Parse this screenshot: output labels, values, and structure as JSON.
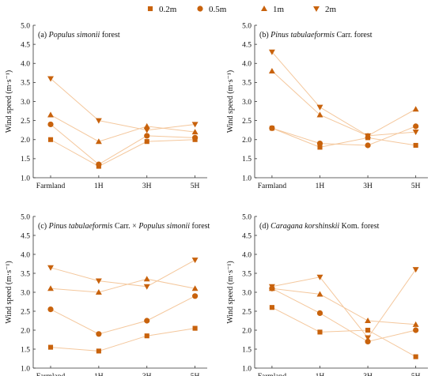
{
  "colors": {
    "marker": "#c8620c",
    "line": "#f4c79c",
    "axis": "#333333"
  },
  "legend": [
    {
      "label": "0.2m",
      "marker": "square"
    },
    {
      "label": "0.5m",
      "marker": "circle"
    },
    {
      "label": "1m",
      "marker": "triangle-up"
    },
    {
      "label": "2m",
      "marker": "triangle-down"
    }
  ],
  "chart_data": [
    {
      "type": "line",
      "title_prefix": "(a) ",
      "title_italic": "Populus simonii",
      "title_suffix": " forest",
      "title_italic2": "",
      "title_suffix2": "",
      "ylabel": "Wind speed (m·s⁻¹)",
      "ylim": [
        1.0,
        5.0
      ],
      "yticks": [
        "1.0",
        "1.5",
        "2.0",
        "2.5",
        "3.0",
        "3.5",
        "4.0",
        "4.5",
        "5.0"
      ],
      "categories": [
        "Farmland",
        "1H",
        "3H",
        "5H"
      ],
      "series": [
        {
          "name": "0.2m",
          "values": [
            2.0,
            1.3,
            1.95,
            2.0
          ]
        },
        {
          "name": "0.5m",
          "values": [
            2.4,
            1.35,
            2.1,
            2.05
          ]
        },
        {
          "name": "1m",
          "values": [
            2.65,
            1.95,
            2.35,
            2.2
          ]
        },
        {
          "name": "2m",
          "values": [
            3.6,
            2.5,
            2.25,
            2.4
          ]
        }
      ]
    },
    {
      "type": "line",
      "title_prefix": "(b) ",
      "title_italic": "Pinus tabulaeformis",
      "title_suffix": " Carr. forest",
      "title_italic2": "",
      "title_suffix2": "",
      "ylabel": "Wind speed (m·s⁻¹)",
      "ylim": [
        1.0,
        5.0
      ],
      "yticks": [
        "1.0",
        "1.5",
        "2.0",
        "2.5",
        "3.0",
        "3.5",
        "4.0",
        "4.5",
        "5.0"
      ],
      "categories": [
        "Farmland",
        "1H",
        "3H",
        "5H"
      ],
      "series": [
        {
          "name": "0.2m",
          "values": [
            2.3,
            1.8,
            2.05,
            1.85
          ]
        },
        {
          "name": "0.5m",
          "values": [
            2.3,
            1.9,
            1.85,
            2.35
          ]
        },
        {
          "name": "1m",
          "values": [
            3.8,
            2.65,
            2.1,
            2.8
          ]
        },
        {
          "name": "2m",
          "values": [
            4.3,
            2.85,
            2.1,
            2.2
          ]
        }
      ]
    },
    {
      "type": "line",
      "title_prefix": "(c) ",
      "title_italic": "Pinus tabulaeformis",
      "title_suffix": " Carr. × ",
      "title_italic2": "Populus simonii",
      "title_suffix2": " forest",
      "ylabel": "Wind speed (m·s⁻¹)",
      "ylim": [
        1.0,
        5.0
      ],
      "yticks": [
        "1.0",
        "1.5",
        "2.0",
        "2.5",
        "3.0",
        "3.5",
        "4.0",
        "4.5",
        "5.0"
      ],
      "categories": [
        "Farmland",
        "1H",
        "3H",
        "5H"
      ],
      "series": [
        {
          "name": "0.2m",
          "values": [
            1.55,
            1.45,
            1.85,
            2.05
          ]
        },
        {
          "name": "0.5m",
          "values": [
            2.55,
            1.9,
            2.25,
            2.9
          ]
        },
        {
          "name": "1m",
          "values": [
            3.1,
            3.0,
            3.35,
            3.1
          ]
        },
        {
          "name": "2m",
          "values": [
            3.65,
            3.3,
            3.15,
            3.85
          ]
        }
      ]
    },
    {
      "type": "line",
      "title_prefix": "(d) ",
      "title_italic": "Caragana korshinskii",
      "title_suffix": " Kom. forest",
      "title_italic2": "",
      "title_suffix2": "",
      "ylabel": "Wind speed (m·s⁻¹)",
      "ylim": [
        1.0,
        5.0
      ],
      "yticks": [
        "1.0",
        "1.5",
        "2.0",
        "2.5",
        "3.0",
        "3.5",
        "4.0",
        "4.5",
        "5.0"
      ],
      "categories": [
        "Farmland",
        "1H",
        "3H",
        "5H"
      ],
      "series": [
        {
          "name": "0.2m",
          "values": [
            2.6,
            1.95,
            2.0,
            1.3
          ]
        },
        {
          "name": "0.5m",
          "values": [
            3.1,
            2.45,
            1.7,
            2.0
          ]
        },
        {
          "name": "1m",
          "values": [
            3.1,
            2.95,
            2.25,
            2.15
          ]
        },
        {
          "name": "2m",
          "values": [
            3.15,
            3.4,
            1.8,
            3.6
          ]
        }
      ]
    }
  ]
}
